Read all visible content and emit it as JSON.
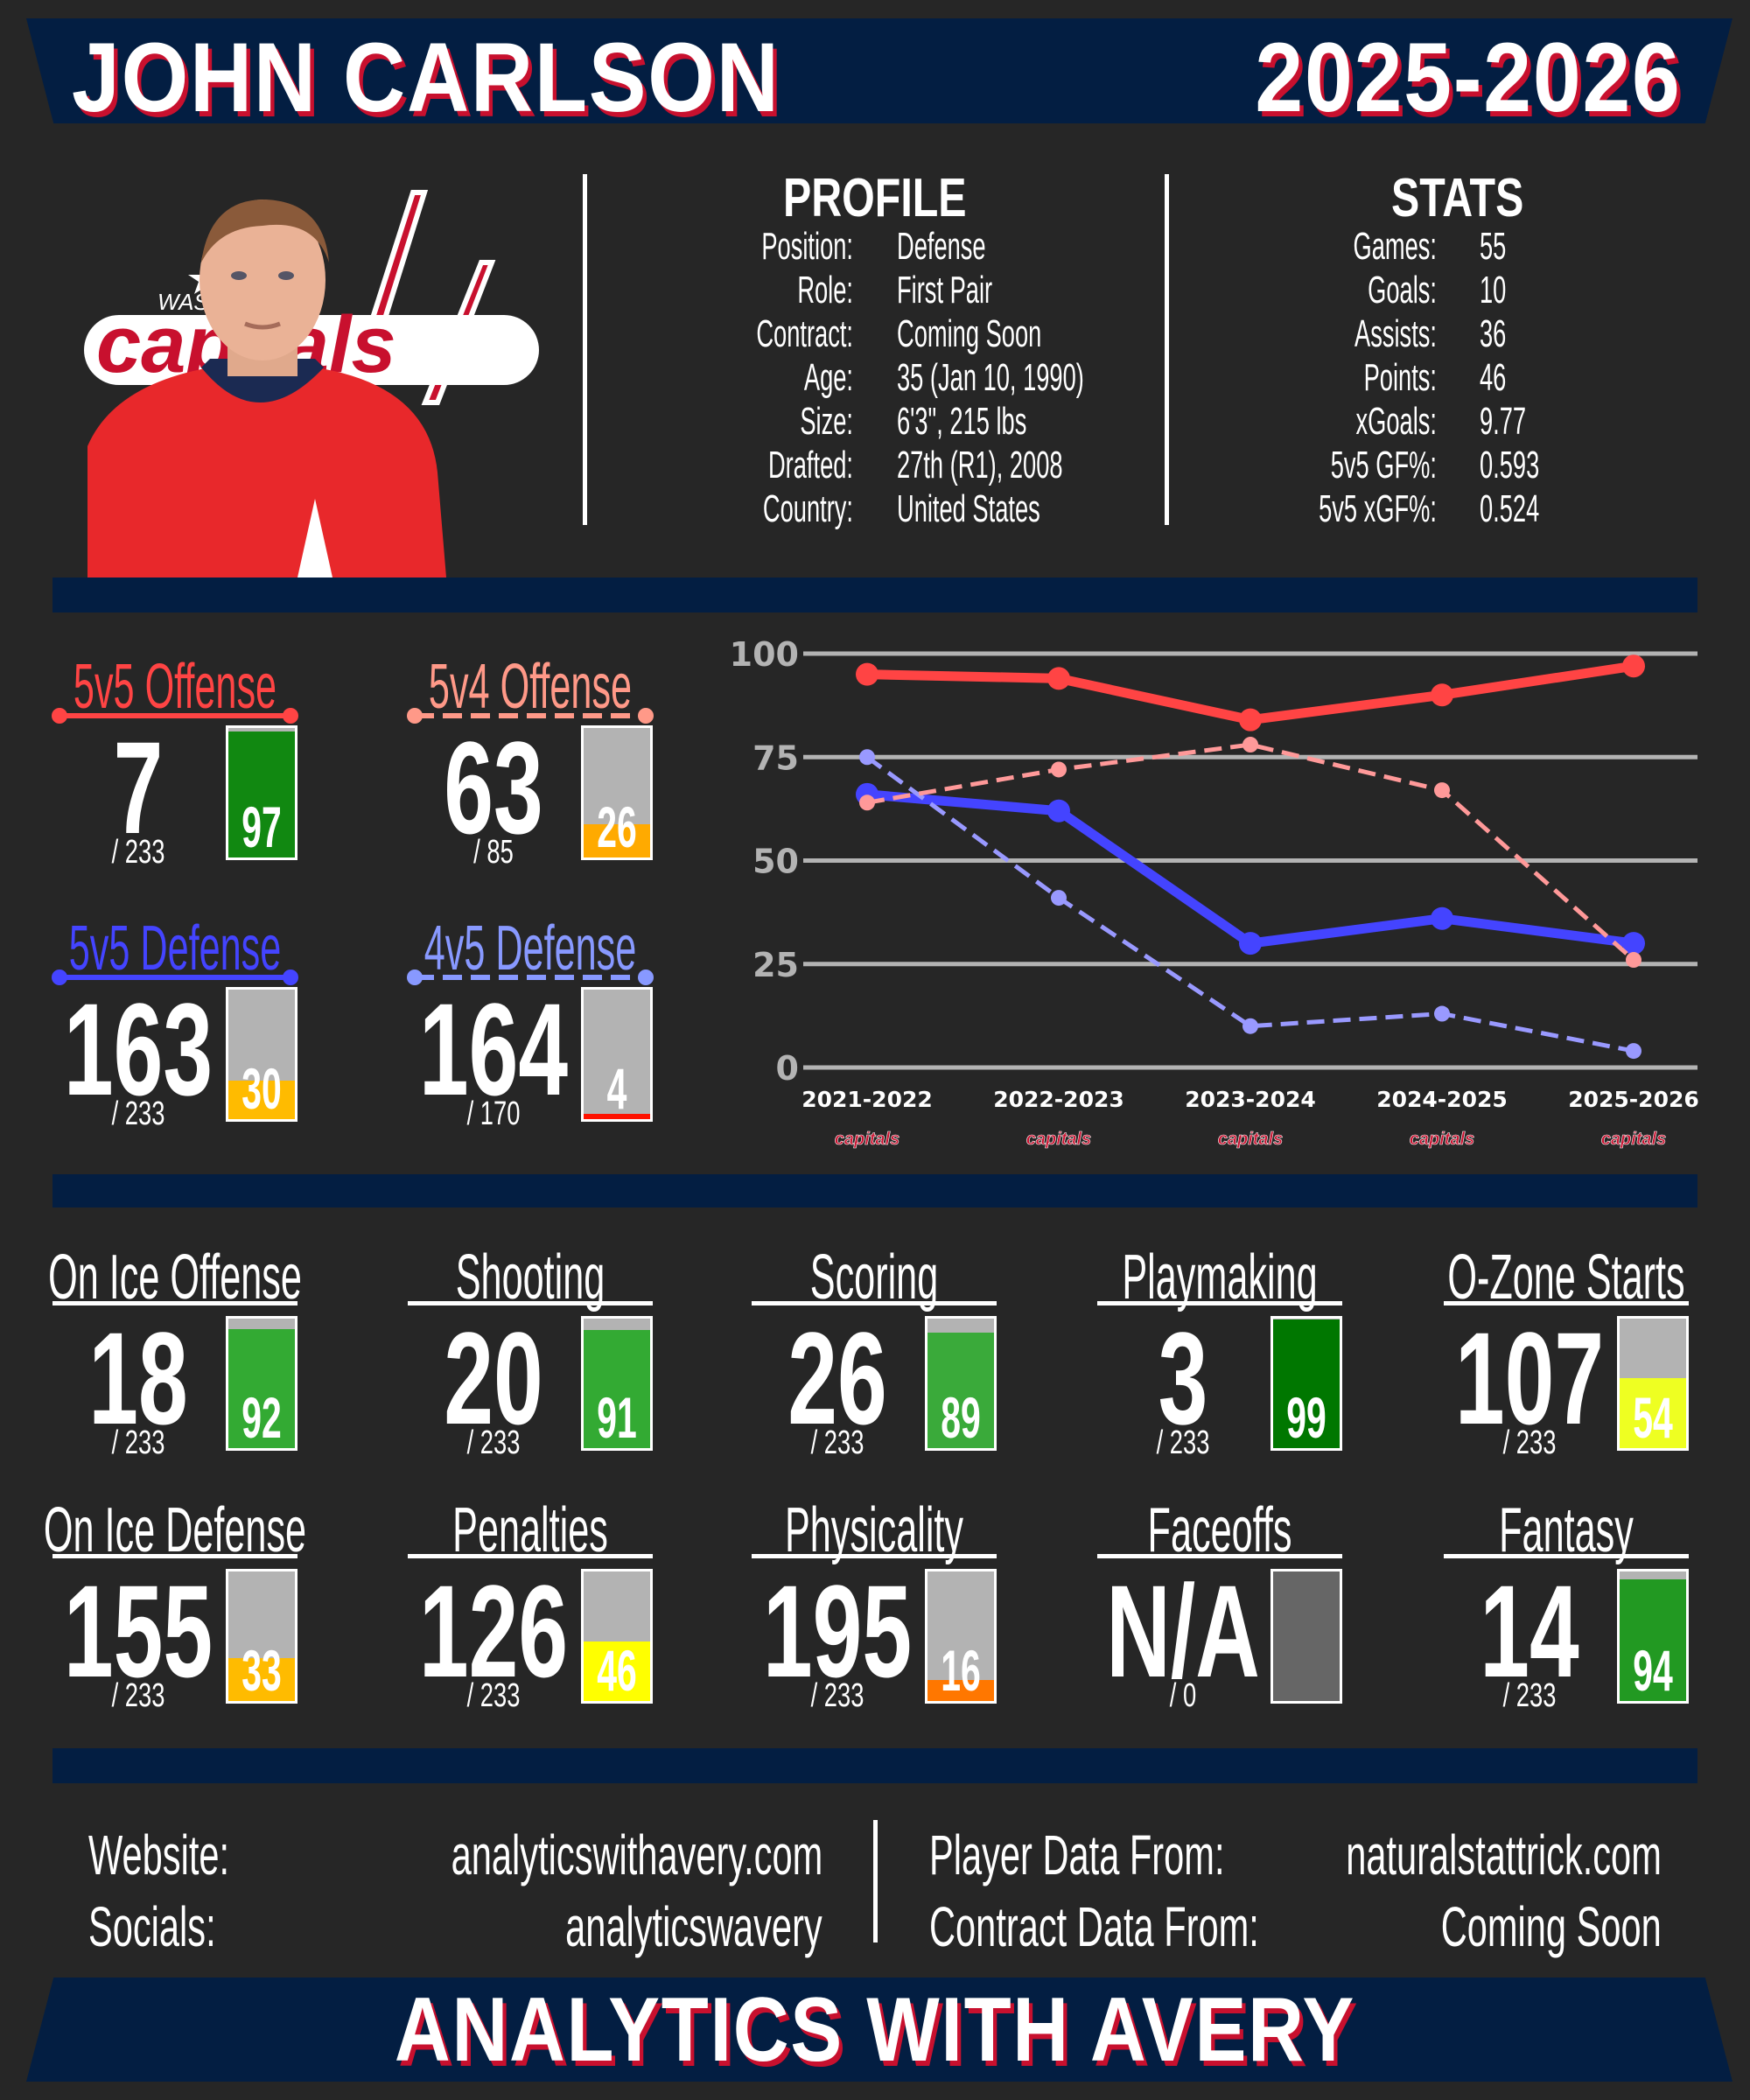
{
  "header": {
    "player_name": "JOHN CARLSON",
    "season": "2025-2026"
  },
  "team_logo_text": "capitals",
  "profile": {
    "title": "PROFILE",
    "rows": [
      {
        "label": "Position:",
        "value": "Defense"
      },
      {
        "label": "Role:",
        "value": "First Pair"
      },
      {
        "label": "Contract:",
        "value": "Coming Soon"
      },
      {
        "label": "Age:",
        "value": "35 (Jan 10, 1990)"
      },
      {
        "label": "Size:",
        "value": "6'3\", 215 lbs"
      },
      {
        "label": "Drafted:",
        "value": "27th (R1), 2008"
      },
      {
        "label": "Country:",
        "value": "United States"
      }
    ]
  },
  "stats": {
    "title": "STATS",
    "rows": [
      {
        "label": "Games:",
        "value": "55"
      },
      {
        "label": "Goals:",
        "value": "10"
      },
      {
        "label": "Assists:",
        "value": "36"
      },
      {
        "label": "Points:",
        "value": "46"
      },
      {
        "label": "xGoals:",
        "value": "9.77"
      },
      {
        "label": "5v5 GF%:",
        "value": "0.593"
      },
      {
        "label": "5v5 xGF%:",
        "value": "0.524"
      }
    ]
  },
  "impact_tiles": [
    {
      "title": "5v5 Offense",
      "rank": "7",
      "total": "/ 233",
      "percentile": 97,
      "title_color": "#ff4444",
      "bar_color": "#118811",
      "line": "solid"
    },
    {
      "title": "5v4 Offense",
      "rank": "63",
      "total": "/ 85",
      "percentile": 26,
      "title_color": "#ff9988",
      "bar_color": "#ffaa00",
      "line": "dashed"
    },
    {
      "title": "5v5 Defense",
      "rank": "163",
      "total": "/ 233",
      "percentile": 30,
      "title_color": "#4444ff",
      "bar_color": "#ffbb00",
      "line": "solid"
    },
    {
      "title": "4v5 Defense",
      "rank": "164",
      "total": "/ 170",
      "percentile": 4,
      "title_color": "#8899ff",
      "bar_color": "#ff1100",
      "line": "dashed"
    }
  ],
  "chart_data": {
    "type": "line",
    "categories": [
      "2021-2022",
      "2022-2023",
      "2023-2024",
      "2024-2025",
      "2025-2026"
    ],
    "ylim": [
      0,
      100
    ],
    "yticks": [
      0,
      25,
      50,
      75,
      100
    ],
    "grid": true,
    "series": [
      {
        "name": "5v5 Offense",
        "values": [
          95,
          94,
          84,
          90,
          97
        ],
        "color": "#ff4444",
        "style": "solid"
      },
      {
        "name": "5v4 Offense",
        "values": [
          64,
          72,
          78,
          67,
          26
        ],
        "color": "#ff9999",
        "style": "dashed"
      },
      {
        "name": "5v5 Defense",
        "values": [
          66,
          62,
          30,
          36,
          30
        ],
        "color": "#4444ff",
        "style": "solid"
      },
      {
        "name": "4v5 Defense",
        "values": [
          75,
          41,
          10,
          13,
          4
        ],
        "color": "#9999ff",
        "style": "dashed"
      }
    ]
  },
  "skill_tiles": [
    {
      "title": "On Ice Offense",
      "rank": "18",
      "total": "/ 233",
      "percentile": 92,
      "bar_color": "#33aa33"
    },
    {
      "title": "Shooting",
      "rank": "20",
      "total": "/ 233",
      "percentile": 91,
      "bar_color": "#33aa33"
    },
    {
      "title": "Scoring",
      "rank": "26",
      "total": "/ 233",
      "percentile": 89,
      "bar_color": "#3aaa3a"
    },
    {
      "title": "Playmaking",
      "rank": "3",
      "total": "/ 233",
      "percentile": 99,
      "bar_color": "#007700"
    },
    {
      "title": "O-Zone Starts",
      "rank": "107",
      "total": "/ 233",
      "percentile": 54,
      "bar_color": "#eeff22"
    },
    {
      "title": "On Ice Defense",
      "rank": "155",
      "total": "/ 233",
      "percentile": 33,
      "bar_color": "#ffbb00"
    },
    {
      "title": "Penalties",
      "rank": "126",
      "total": "/ 233",
      "percentile": 46,
      "bar_color": "#ffff00"
    },
    {
      "title": "Physicality",
      "rank": "195",
      "total": "/ 233",
      "percentile": 16,
      "bar_color": "#ff7700"
    },
    {
      "title": "Faceoffs",
      "rank": "N/A",
      "total": "/ 0",
      "percentile": null,
      "bar_color": "#666666"
    },
    {
      "title": "Fantasy",
      "rank": "14",
      "total": "/ 233",
      "percentile": 94,
      "bar_color": "#229922"
    }
  ],
  "footer": {
    "website_label": "Website:",
    "website_value": "analyticswithavery.com",
    "socials_label": "Socials:",
    "socials_value": "analyticswavery",
    "player_data_label": "Player Data From:",
    "player_data_value": "naturalstattrick.com",
    "contract_data_label": "Contract Data From:",
    "contract_data_value": "Coming Soon",
    "brand": "ANALYTICS WITH AVERY"
  },
  "colors": {
    "background": "#262626",
    "navy": "#031e42",
    "accent_red": "#c8102e"
  }
}
